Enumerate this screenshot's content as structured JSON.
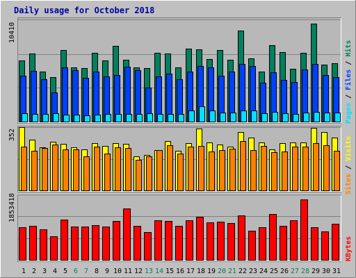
{
  "chart_data": [
    {
      "type": "bar",
      "title": "Daily usage for October 2018",
      "panel": "hits-files-pages",
      "ytick_label": "10410",
      "categories": [
        "1",
        "2",
        "3",
        "4",
        "5",
        "6",
        "7",
        "8",
        "9",
        "10",
        "11",
        "12",
        "13",
        "14",
        "15",
        "16",
        "17",
        "18",
        "19",
        "20",
        "21",
        "22",
        "23",
        "24",
        "25",
        "26",
        "27",
        "28",
        "29",
        "30",
        "31"
      ],
      "weekend_days": [
        "6",
        "7",
        "13",
        "14",
        "20",
        "21",
        "27",
        "28"
      ],
      "series": [
        {
          "name": "Hits",
          "color": "#00805c",
          "values": [
            7740,
            8560,
            6320,
            5600,
            8970,
            6850,
            6730,
            8660,
            7690,
            9550,
            7770,
            6800,
            6730,
            8660,
            8530,
            6870,
            9200,
            9050,
            7860,
            9030,
            7750,
            11410,
            7990,
            6350,
            9580,
            8700,
            6700,
            8620,
            12300,
            7200,
            7350
          ]
        },
        {
          "name": "Files",
          "color": "#0040ff",
          "values": [
            5820,
            6380,
            5400,
            3680,
            6850,
            6470,
            5560,
            6350,
            5700,
            5890,
            6960,
            6470,
            4310,
            5680,
            6020,
            5380,
            6330,
            7030,
            6860,
            5820,
            6300,
            7300,
            7040,
            4950,
            6260,
            5310,
            5000,
            6560,
            7270,
            5900,
            5650
          ]
        },
        {
          "name": "Pages",
          "color": "#00e0ff",
          "values": [
            1150,
            1020,
            1000,
            1100,
            960,
            950,
            900,
            920,
            1030,
            1060,
            1030,
            1000,
            1100,
            1050,
            1010,
            1050,
            1500,
            1950,
            1500,
            1200,
            1220,
            1500,
            1450,
            1100,
            1340,
            1100,
            1000,
            1200,
            1320,
            1250,
            1180
          ]
        }
      ],
      "legend": [
        "Pages",
        "Files",
        "Hits"
      ]
    },
    {
      "type": "bar",
      "panel": "visits-sites",
      "ytick_label": "352",
      "categories": [
        "1",
        "2",
        "3",
        "4",
        "5",
        "6",
        "7",
        "8",
        "9",
        "10",
        "11",
        "12",
        "13",
        "14",
        "15",
        "16",
        "17",
        "18",
        "19",
        "20",
        "21",
        "22",
        "23",
        "24",
        "25",
        "26",
        "27",
        "28",
        "29",
        "30",
        "31"
      ],
      "series": [
        {
          "name": "Visits",
          "color": "#ffff00",
          "values": [
            352,
            283,
            240,
            270,
            260,
            240,
            230,
            265,
            250,
            265,
            260,
            190,
            200,
            225,
            275,
            222,
            264,
            345,
            269,
            255,
            245,
            326,
            293,
            269,
            231,
            265,
            268,
            268,
            350,
            325,
            293
          ]
        },
        {
          "name": "Sites",
          "color": "#ff8000",
          "values": [
            243,
            220,
            239,
            258,
            229,
            229,
            191,
            244,
            205,
            241,
            236,
            171,
            190,
            227,
            253,
            206,
            245,
            247,
            219,
            225,
            233,
            276,
            226,
            247,
            215,
            217,
            246,
            245,
            264,
            252,
            220
          ]
        }
      ],
      "legend": [
        "Sites",
        "Visits"
      ]
    },
    {
      "type": "bar",
      "panel": "kbytes",
      "ytick_label": "1853418",
      "categories": [
        "1",
        "2",
        "3",
        "4",
        "5",
        "6",
        "7",
        "8",
        "9",
        "10",
        "11",
        "12",
        "13",
        "14",
        "15",
        "16",
        "17",
        "18",
        "19",
        "20",
        "21",
        "22",
        "23",
        "24",
        "25",
        "26",
        "27",
        "28",
        "29",
        "30",
        "31"
      ],
      "series": [
        {
          "name": "KBytes",
          "color": "#ff0000",
          "values": [
            1390000,
            1428000,
            1306000,
            1020000,
            1710000,
            1418000,
            1420000,
            1480000,
            1407000,
            1633000,
            2156000,
            1436000,
            1174000,
            1665000,
            1632000,
            1439000,
            1670000,
            1805000,
            1587000,
            1627000,
            1562000,
            1873000,
            1233000,
            1383000,
            1928000,
            1442000,
            1672000,
            2543000,
            1392000,
            1205000,
            1513000
          ]
        }
      ],
      "legend": [
        "KBytes"
      ]
    }
  ]
}
